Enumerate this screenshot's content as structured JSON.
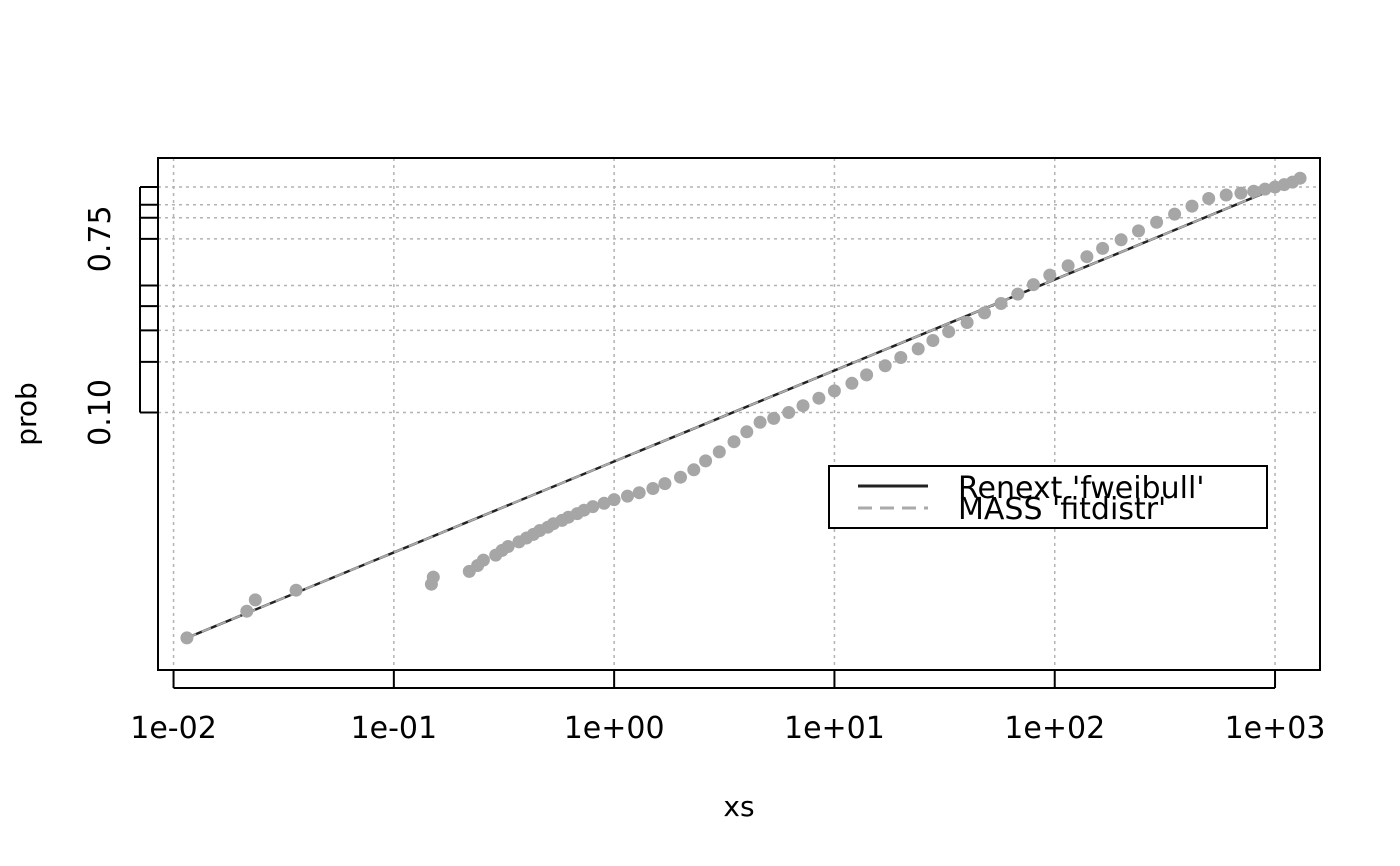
{
  "chart_data": {
    "type": "scatter",
    "title": "",
    "xlabel": "xs",
    "ylabel": "prob",
    "x_scale": "log",
    "y_scale": "weibull-probability",
    "xlim": [
      0.0085,
      1600
    ],
    "ylim": [
      0.0023,
      0.99
    ],
    "grid": true,
    "x_ticks": [
      0.01,
      0.1,
      1,
      10,
      100,
      1000
    ],
    "x_tick_labels": [
      "1e-02",
      "1e-01",
      "1e+00",
      "1e+01",
      "1e+02",
      "1e+03"
    ],
    "y_ticks": [
      0.1,
      0.2,
      0.3,
      0.4,
      0.5,
      0.75,
      0.85,
      0.9,
      0.95
    ],
    "y_labeled_ticks": [
      {
        "value": 0.1,
        "label": "0.10"
      },
      {
        "value": 0.75,
        "label": "0.75"
      }
    ],
    "series": [
      {
        "name": "Renext 'fweibull'",
        "type": "line",
        "style": "solid",
        "color": "#222222",
        "x": [
          0.0115,
          1300
        ],
        "y": [
          0.0037,
          0.967
        ]
      },
      {
        "name": "MASS 'fitdistr'",
        "type": "line",
        "style": "dashed",
        "color": "#aaaaaa",
        "x": [
          0.0115,
          1300
        ],
        "y": [
          0.0037,
          0.967
        ]
      },
      {
        "type": "points",
        "color": "#a6a6a6",
        "x": [
          0.0115,
          0.0215,
          0.0235,
          0.036,
          0.148,
          0.151,
          0.22,
          0.24,
          0.255,
          0.29,
          0.31,
          0.33,
          0.37,
          0.4,
          0.43,
          0.46,
          0.5,
          0.53,
          0.58,
          0.62,
          0.68,
          0.73,
          0.8,
          0.9,
          1.0,
          1.15,
          1.3,
          1.5,
          1.7,
          2.0,
          2.3,
          2.6,
          3.0,
          3.5,
          4.0,
          4.6,
          5.3,
          6.2,
          7.2,
          8.5,
          10,
          12,
          14,
          17,
          20,
          24,
          28,
          33,
          40,
          48,
          57,
          68,
          80,
          95,
          115,
          140,
          165,
          200,
          240,
          290,
          350,
          420,
          500,
          600,
          700,
          800,
          900,
          1000,
          1100,
          1200,
          1300
        ],
        "y": [
          0.0037,
          0.0055,
          0.0065,
          0.0075,
          0.0082,
          0.0091,
          0.0099,
          0.0108,
          0.0117,
          0.0126,
          0.0135,
          0.0143,
          0.0153,
          0.0162,
          0.0171,
          0.0181,
          0.019,
          0.02,
          0.021,
          0.022,
          0.0232,
          0.0244,
          0.0257,
          0.027,
          0.0285,
          0.03,
          0.0315,
          0.0335,
          0.036,
          0.0395,
          0.044,
          0.05,
          0.057,
          0.066,
          0.076,
          0.087,
          0.092,
          0.1,
          0.11,
          0.122,
          0.135,
          0.15,
          0.168,
          0.19,
          0.212,
          0.237,
          0.264,
          0.295,
          0.33,
          0.37,
          0.412,
          0.457,
          0.505,
          0.555,
          0.605,
          0.655,
          0.7,
          0.745,
          0.79,
          0.83,
          0.865,
          0.895,
          0.92,
          0.93,
          0.935,
          0.94,
          0.945,
          0.95,
          0.955,
          0.96,
          0.967
        ]
      }
    ]
  }
}
